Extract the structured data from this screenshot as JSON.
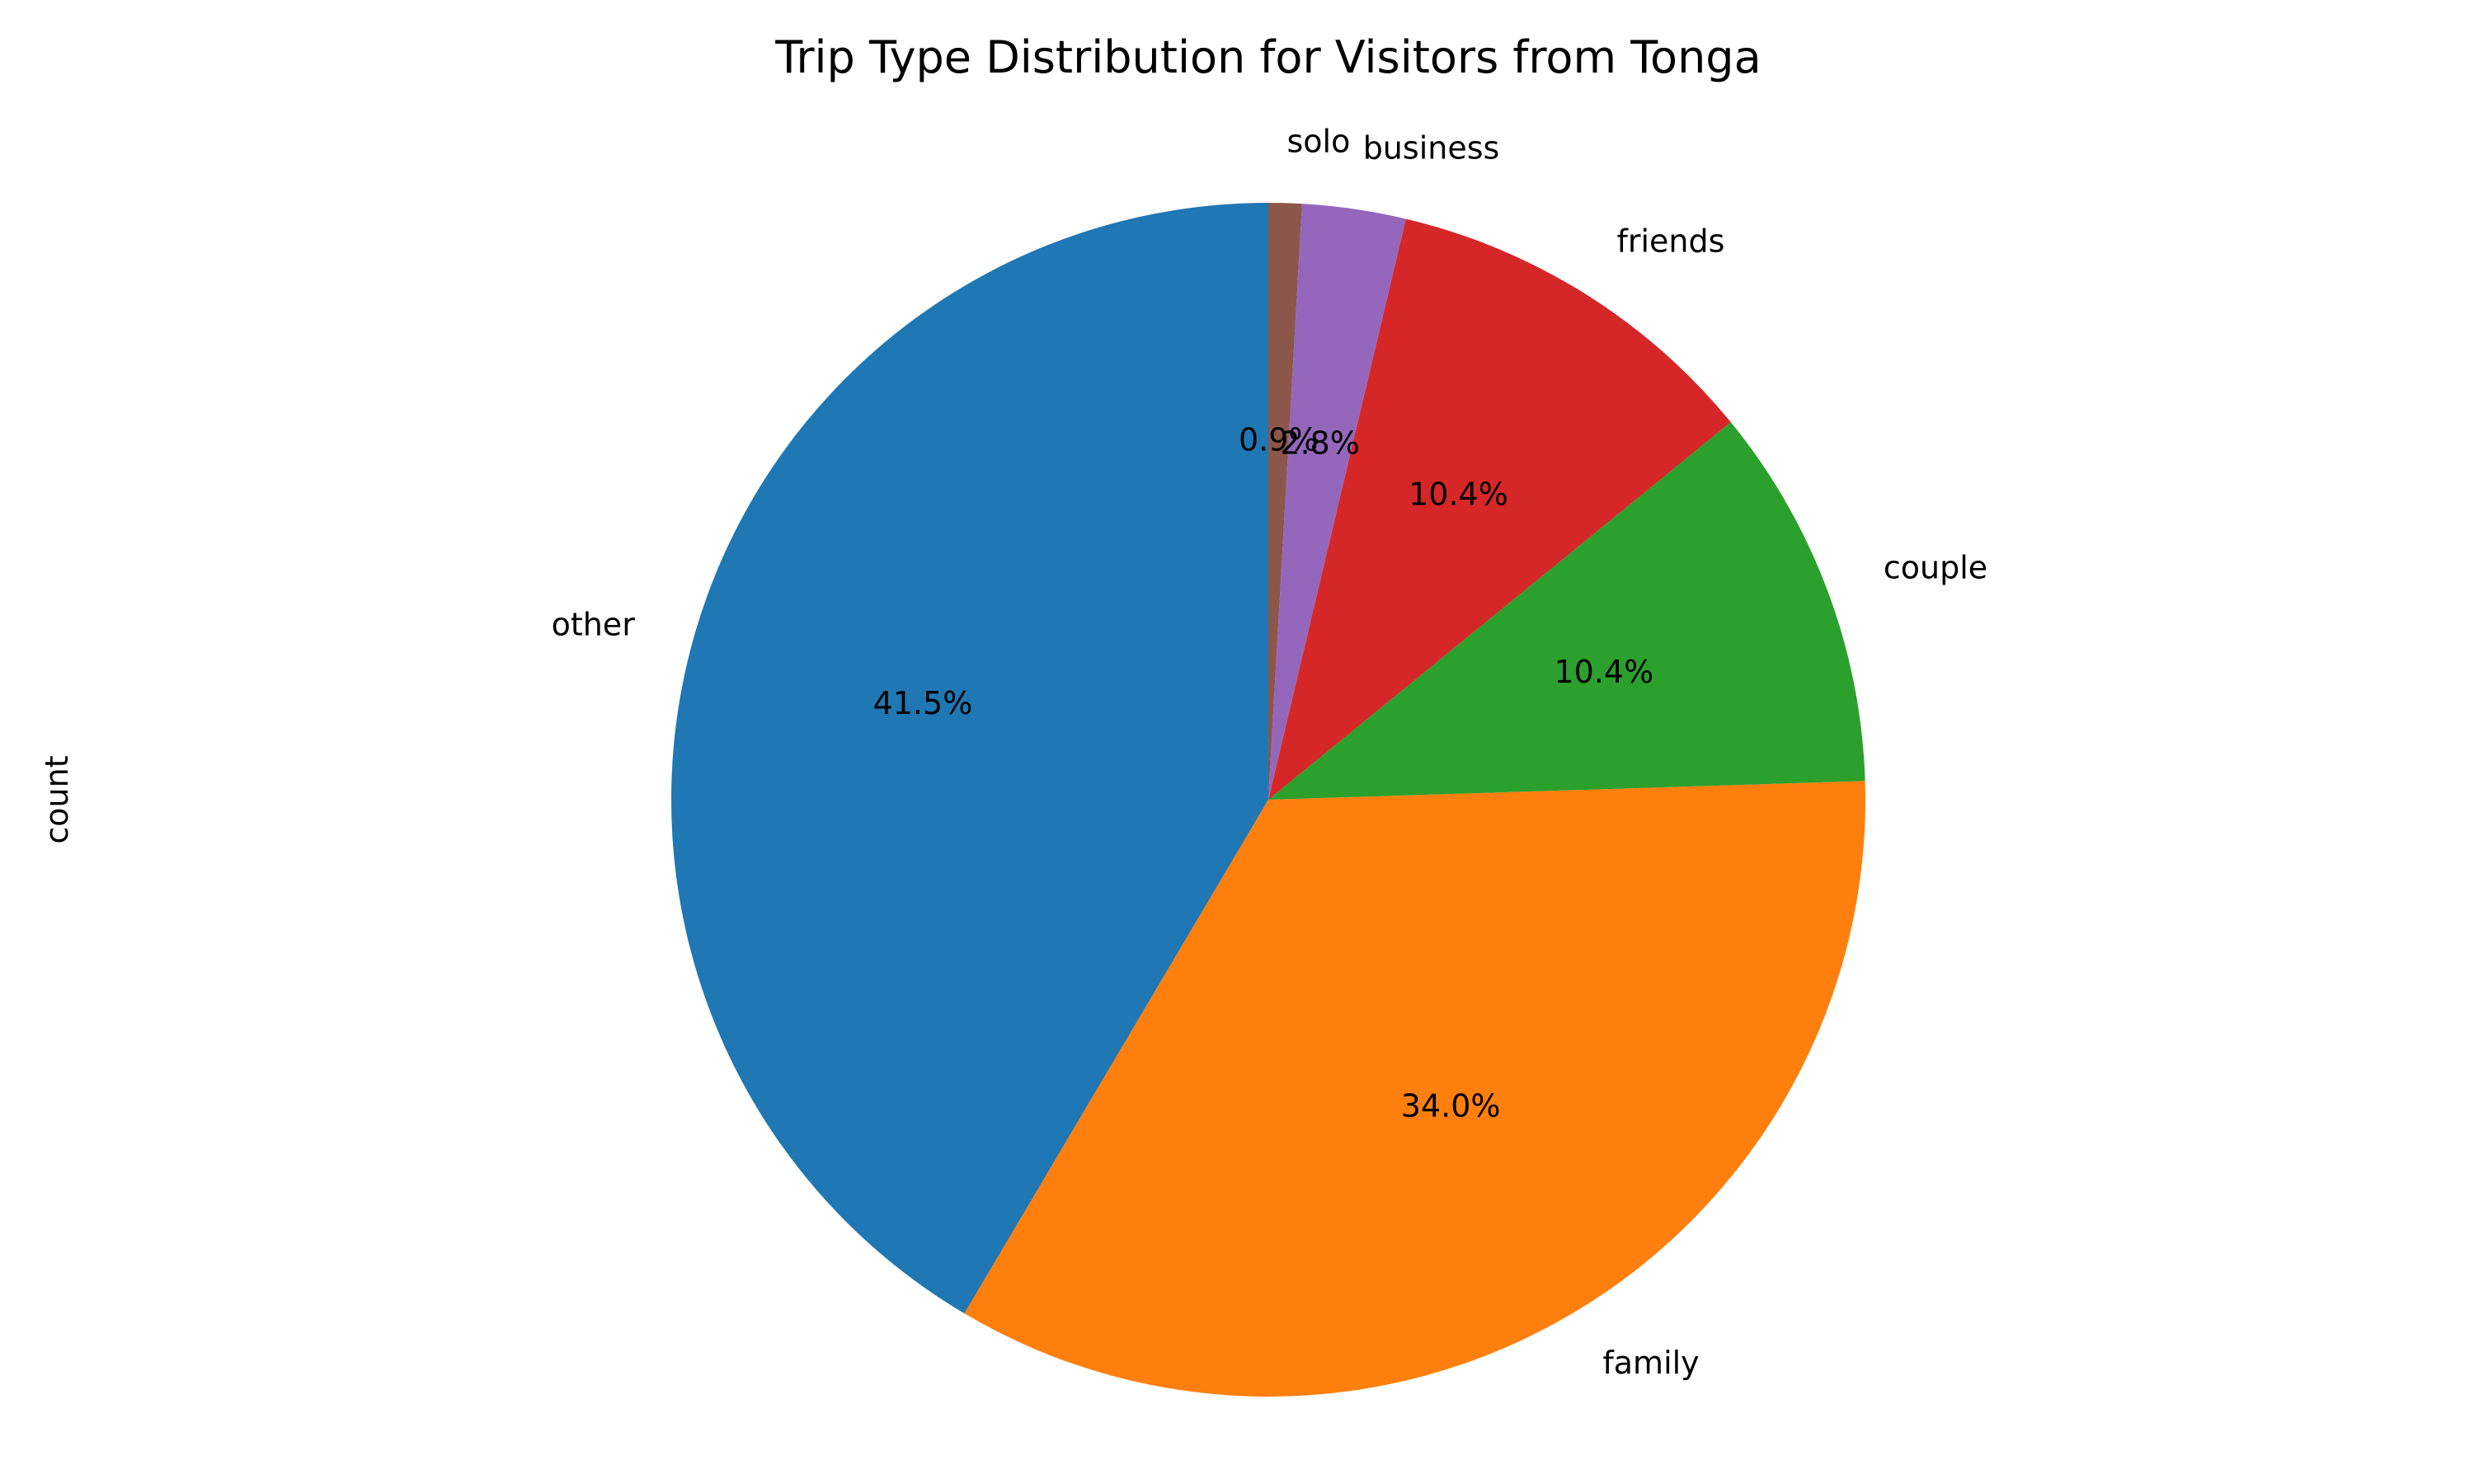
{
  "chart_data": {
    "type": "pie",
    "title": "Trip Type Distribution for Visitors from Tonga",
    "ylabel": "count",
    "start_angle_deg": 90,
    "direction": "counterclockwise",
    "slices": [
      {
        "label": "other",
        "percent": 41.5,
        "pct_text": "41.5%",
        "color": "#1f77b4"
      },
      {
        "label": "family",
        "percent": 34.0,
        "pct_text": "34.0%",
        "color": "#ff7f0e"
      },
      {
        "label": "couple",
        "percent": 10.4,
        "pct_text": "10.4%",
        "color": "#2ca02c"
      },
      {
        "label": "friends",
        "percent": 10.4,
        "pct_text": "10.4%",
        "color": "#d62728"
      },
      {
        "label": "business",
        "percent": 2.8,
        "pct_text": "2.8%",
        "color": "#9467bd"
      },
      {
        "label": "solo",
        "percent": 0.9,
        "pct_text": "0.9%",
        "color": "#8c564b"
      }
    ]
  }
}
